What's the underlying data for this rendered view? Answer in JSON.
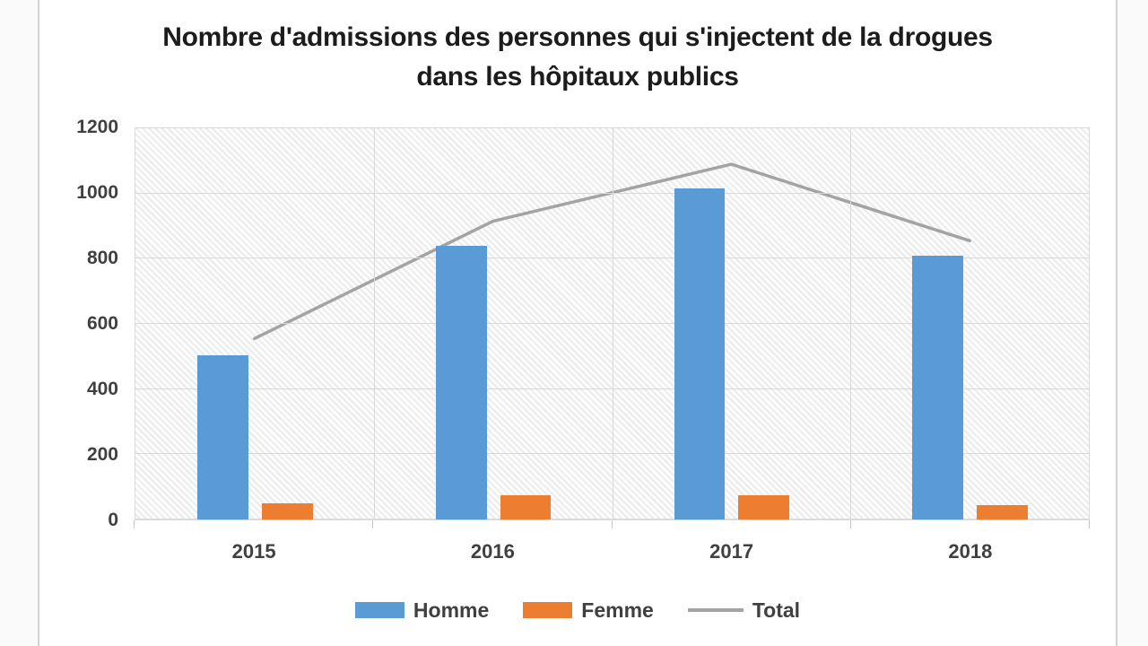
{
  "title": {
    "line1": "Nombre d'admissions des personnes qui s'injectent de la drogues",
    "line2": "dans les hôpitaux publics"
  },
  "chart_data": {
    "type": "bar",
    "subtype": "clustered-bars-with-line-overlay",
    "categories": [
      "2015",
      "2016",
      "2017",
      "2018"
    ],
    "series": [
      {
        "name": "Homme",
        "type": "bar",
        "color": "#5B9BD5",
        "values": [
          505,
          840,
          1015,
          810
        ]
      },
      {
        "name": "Femme",
        "type": "bar",
        "color": "#ED7D31",
        "values": [
          50,
          75,
          75,
          45
        ]
      },
      {
        "name": "Total",
        "type": "line",
        "color": "#a3a3a3",
        "values": [
          555,
          915,
          1090,
          855
        ]
      }
    ],
    "ylim": [
      0,
      1200
    ],
    "yticks": [
      0,
      200,
      400,
      600,
      800,
      1000,
      1200
    ],
    "xlabel": "",
    "ylabel": "",
    "grid": "horizontal-and-vertical",
    "plot_background": "light-diagonal-hatch",
    "legend_position": "bottom",
    "gridline_color": "#d9d9d9",
    "axis_label_color": "#404040"
  }
}
